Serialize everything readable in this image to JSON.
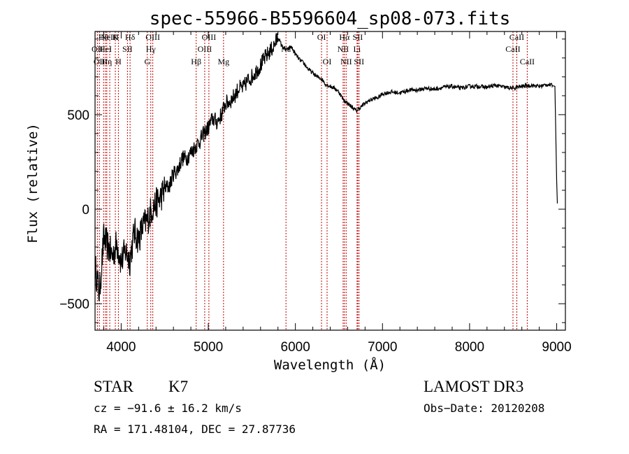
{
  "chart_data": {
    "type": "line",
    "title": "spec-55966-B5596604_sp08-073.fits",
    "xlabel": "Wavelength (Å)",
    "ylabel": "Flux (relative)",
    "xlim": [
      3700,
      9100
    ],
    "ylim": [
      -640,
      940
    ],
    "xticks": [
      4000,
      5000,
      6000,
      7000,
      8000,
      9000
    ],
    "yticks": [
      -500,
      0,
      500
    ],
    "series": [
      {
        "name": "spectrum",
        "x": [
          3700,
          3750,
          3800,
          3850,
          3900,
          3950,
          4000,
          4050,
          4100,
          4150,
          4200,
          4250,
          4300,
          4350,
          4400,
          4450,
          4500,
          4550,
          4600,
          4650,
          4700,
          4750,
          4800,
          4850,
          4900,
          4950,
          5000,
          5050,
          5100,
          5150,
          5200,
          5250,
          5300,
          5350,
          5400,
          5450,
          5500,
          5550,
          5600,
          5650,
          5700,
          5750,
          5800,
          5850,
          5900,
          5950,
          6000,
          6050,
          6100,
          6150,
          6200,
          6250,
          6300,
          6350,
          6400,
          6450,
          6500,
          6550,
          6600,
          6650,
          6700,
          6750,
          6800,
          6850,
          6900,
          6950,
          7000,
          7100,
          7200,
          7300,
          7400,
          7500,
          7600,
          7700,
          7800,
          7900,
          8000,
          8100,
          8200,
          8300,
          8400,
          8500,
          8600,
          8700,
          8800,
          8900,
          8980,
          9000,
          9010
        ],
        "y": [
          -300,
          -450,
          -150,
          -200,
          -250,
          -180,
          -280,
          -220,
          -270,
          -120,
          -160,
          -90,
          -60,
          0,
          30,
          60,
          110,
          120,
          190,
          210,
          270,
          270,
          300,
          330,
          360,
          400,
          430,
          480,
          460,
          500,
          560,
          570,
          600,
          640,
          640,
          680,
          700,
          730,
          760,
          800,
          830,
          860,
          910,
          860,
          840,
          860,
          820,
          790,
          770,
          740,
          720,
          700,
          690,
          660,
          650,
          640,
          620,
          580,
          560,
          540,
          520,
          540,
          560,
          575,
          585,
          590,
          610,
          620,
          615,
          630,
          630,
          640,
          635,
          645,
          650,
          640,
          650,
          650,
          645,
          655,
          645,
          640,
          650,
          655,
          650,
          660,
          650,
          150,
          0
        ]
      }
    ],
    "spectral_lines": [
      {
        "wavelength": 3727,
        "label": "OII",
        "row": 2
      },
      {
        "wavelength": 3750,
        "label": "OII",
        "row": 3
      },
      {
        "wavelength": 3798,
        "label": "Hθ",
        "row": 1
      },
      {
        "wavelength": 3820,
        "label": "HeI",
        "row": 2
      },
      {
        "wavelength": 3835,
        "label": "Hη",
        "row": 3
      },
      {
        "wavelength": 3869,
        "label": "NeIII",
        "row": 0
      },
      {
        "wavelength": 3933,
        "label": "K",
        "row": 1
      },
      {
        "wavelength": 3968,
        "label": "H",
        "row": 3
      },
      {
        "wavelength": 4072,
        "label": "SII",
        "row": 2
      },
      {
        "wavelength": 4102,
        "label": "Hδ",
        "row": 1
      },
      {
        "wavelength": 4300,
        "label": "G",
        "row": 3
      },
      {
        "wavelength": 4340,
        "label": "Hγ",
        "row": 2
      },
      {
        "wavelength": 4363,
        "label": "OIII",
        "row": 1
      },
      {
        "wavelength": 4861,
        "label": "Hβ",
        "row": 3
      },
      {
        "wavelength": 4959,
        "label": "OIII",
        "row": 2
      },
      {
        "wavelength": 5007,
        "label": "OIII",
        "row": 1
      },
      {
        "wavelength": 5175,
        "label": "Mg",
        "row": 3
      },
      {
        "wavelength": 5892,
        "label": "Na",
        "row": 2
      },
      {
        "wavelength": 6300,
        "label": "OI",
        "row": 1
      },
      {
        "wavelength": 6364,
        "label": "OI",
        "row": 3
      },
      {
        "wavelength": 6548,
        "label": "NII",
        "row": 2
      },
      {
        "wavelength": 6563,
        "label": "Hα",
        "row": 1
      },
      {
        "wavelength": 6583,
        "label": "NII",
        "row": 3
      },
      {
        "wavelength": 6708,
        "label": "Li",
        "row": 2
      },
      {
        "wavelength": 6716,
        "label": "SII",
        "row": 1
      },
      {
        "wavelength": 6731,
        "label": "SII",
        "row": 3
      },
      {
        "wavelength": 8498,
        "label": "CaII",
        "row": 2
      },
      {
        "wavelength": 8542,
        "label": "CaII",
        "row": 1
      },
      {
        "wavelength": 8662,
        "label": "CaII",
        "row": 3
      }
    ]
  },
  "info": {
    "object_class": "STAR",
    "subclass": "K7",
    "survey": "LAMOST DR3",
    "redshift": "cz = −91.6 ± 16.2 km/s",
    "obs_date": "Obs−Date: 20120208",
    "coords": "RA = 171.48104, DEC =  27.87736"
  },
  "colors": {
    "spectrum": "#000000",
    "line_markers": "#c00000",
    "axes": "#000000",
    "background": "#ffffff"
  }
}
